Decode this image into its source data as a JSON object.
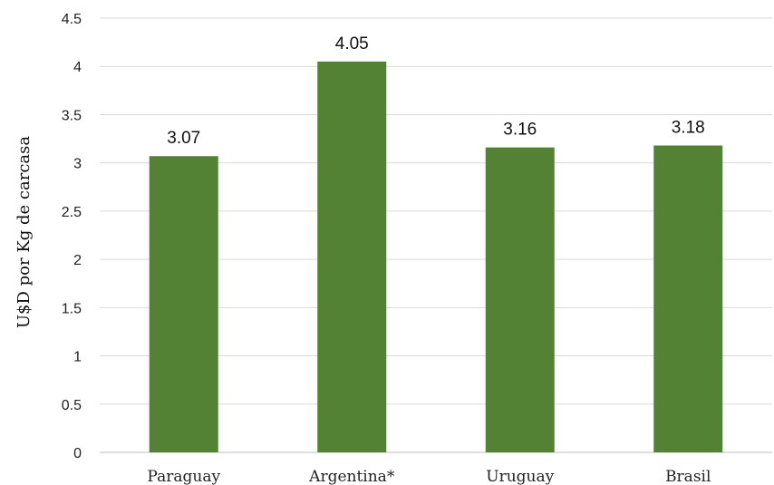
{
  "chart_data": {
    "type": "bar",
    "categories": [
      "Paraguay",
      "Argentina*",
      "Uruguay",
      "Brasil"
    ],
    "values": [
      3.07,
      4.05,
      3.16,
      3.18
    ],
    "data_labels": [
      "3.07",
      "4.05",
      "3.16",
      "3.18"
    ],
    "yticks": [
      "0",
      "0.5",
      "1",
      "1.5",
      "2",
      "2.5",
      "3",
      "3.5",
      "4",
      "4.5"
    ],
    "ylim": [
      0,
      4.5
    ],
    "ylabel": "U$D por Kg de carcasa",
    "xlabel": "",
    "grid": true,
    "bar_color": "#548235"
  }
}
